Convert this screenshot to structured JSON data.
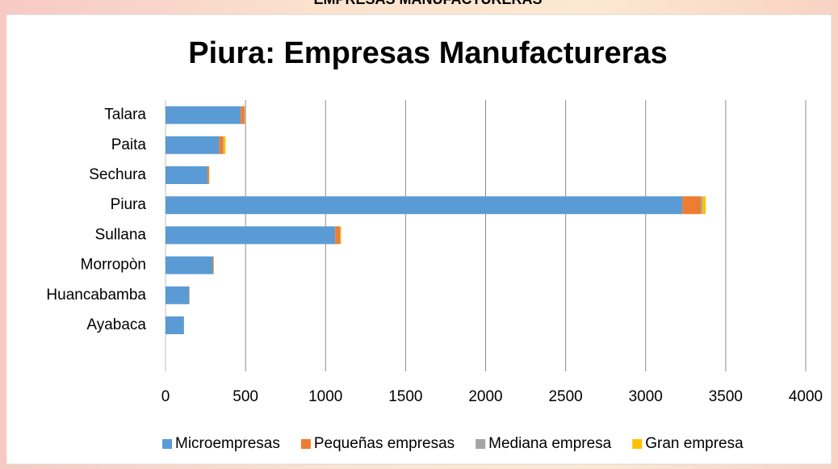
{
  "header": "EMPRESAS MANUFACTURERAS",
  "chart_data": {
    "type": "stacked-bar-horizontal",
    "title": "Piura: Empresas Manufactureras",
    "categories": [
      "Talara",
      "Paita",
      "Sechura",
      "Piura",
      "Sullana",
      "Morropòn",
      "Huancabamba",
      "Ayabaca"
    ],
    "series": [
      {
        "name": "Microempresas",
        "color": "#5b9bd5",
        "values": [
          470,
          335,
          262,
          3230,
          1060,
          295,
          148,
          115
        ]
      },
      {
        "name": "Pequeñas empresas",
        "color": "#ed7d31",
        "values": [
          22,
          25,
          10,
          115,
          30,
          5,
          2,
          1
        ]
      },
      {
        "name": "Mediana empresa",
        "color": "#a5a5a5",
        "values": [
          3,
          3,
          1,
          10,
          3,
          1,
          0,
          0
        ]
      },
      {
        "name": "Gran empresa",
        "color": "#ffc000",
        "values": [
          2,
          12,
          1,
          20,
          5,
          1,
          0,
          0
        ]
      }
    ],
    "xlim": [
      0,
      4000
    ],
    "xticks": [
      0,
      500,
      1000,
      1500,
      2000,
      2500,
      3000,
      3500,
      4000
    ],
    "grid": true,
    "legend": "bottom"
  }
}
